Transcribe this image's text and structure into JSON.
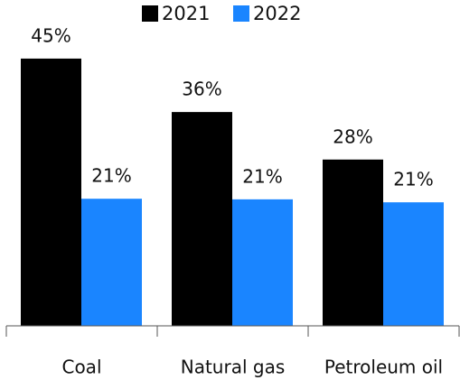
{
  "chart_data": {
    "type": "bar",
    "categories": [
      "Coal",
      "Natural gas",
      "Petroleum oil"
    ],
    "series": [
      {
        "name": "2021",
        "color": "#000000",
        "values": [
          45,
          36,
          28
        ],
        "value_labels": [
          "45%",
          "36%",
          "28%"
        ]
      },
      {
        "name": "2022",
        "color": "#1a85ff",
        "values": [
          21.4,
          21.3,
          20.8
        ],
        "value_labels": [
          "21%",
          "21%",
          "21%"
        ]
      }
    ],
    "ylim": [
      0,
      50
    ],
    "legend": "top"
  }
}
